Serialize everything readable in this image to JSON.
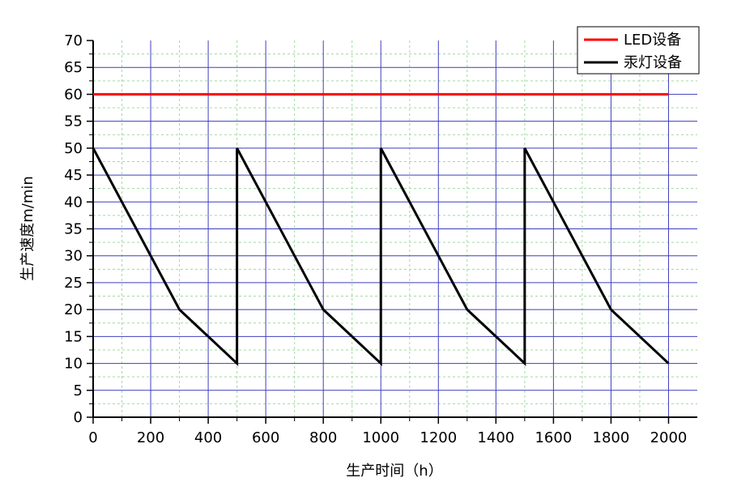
{
  "chart_data": {
    "type": "line",
    "title": "",
    "xlabel": "生产时间（h）",
    "ylabel": "生产速度m/min",
    "xlim": [
      0,
      2100
    ],
    "ylim": [
      0,
      70
    ],
    "x_ticks": [
      0,
      200,
      400,
      600,
      800,
      1000,
      1200,
      1400,
      1600,
      1800,
      2000
    ],
    "y_ticks": [
      0,
      5,
      10,
      15,
      20,
      25,
      30,
      35,
      40,
      45,
      50,
      55,
      60,
      65,
      70
    ],
    "x_tick_labels": [
      "0",
      "200",
      "400",
      "600",
      "800",
      "1000",
      "1200",
      "1400",
      "1600",
      "1800",
      "2000"
    ],
    "y_tick_labels": [
      "0",
      "5",
      "10",
      "15",
      "20",
      "25",
      "30",
      "35",
      "40",
      "45",
      "50",
      "55",
      "60",
      "65",
      "70"
    ],
    "grid": true,
    "grid_colors": {
      "major": "#3f3fbf",
      "minor_y": "#9fdc9f"
    },
    "legend_position": "top-right",
    "series": [
      {
        "name": "LED设备",
        "color": "#ff0000",
        "x": [
          0,
          2000
        ],
        "y": [
          60,
          60
        ]
      },
      {
        "name": "汞灯设备",
        "color": "#000000",
        "x": [
          0,
          300,
          500,
          500,
          800,
          1000,
          1000,
          1300,
          1500,
          1500,
          1800,
          2000
        ],
        "y": [
          50,
          20,
          10,
          50,
          20,
          10,
          50,
          20,
          10,
          50,
          20,
          10
        ]
      }
    ]
  }
}
